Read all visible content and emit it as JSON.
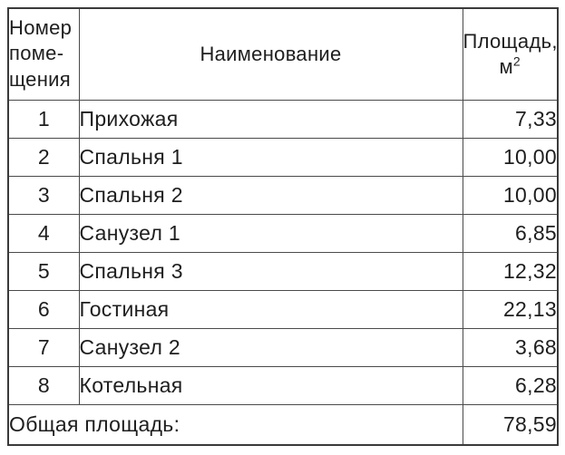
{
  "table": {
    "title_semantic": "room-area-schedule",
    "headers": {
      "number": "Номер\nпоме-\nщения",
      "name": "Наименование",
      "area_line1": "Площадь,",
      "area_unit": "м",
      "area_unit_exp": "2"
    },
    "rows": [
      {
        "number": "1",
        "name": "Прихожая",
        "area": "7,33"
      },
      {
        "number": "2",
        "name": "Спальня 1",
        "area": "10,00"
      },
      {
        "number": "3",
        "name": "Спальня 2",
        "area": "10,00"
      },
      {
        "number": "4",
        "name": "Санузел 1",
        "area": "6,85"
      },
      {
        "number": "5",
        "name": "Спальня 3",
        "area": "12,32"
      },
      {
        "number": "6",
        "name": "Гостиная",
        "area": "22,13"
      },
      {
        "number": "7",
        "name": "Санузел 2",
        "area": "3,68"
      },
      {
        "number": "8",
        "name": "Котельная",
        "area": "6,28"
      }
    ],
    "footer": {
      "label": "Общая площадь:",
      "total": "78,59"
    }
  },
  "colors": {
    "border_outer": "#3a3a3a",
    "border_inner": "#4a4a4a",
    "text": "#1e1e1e",
    "background": "#ffffff"
  }
}
